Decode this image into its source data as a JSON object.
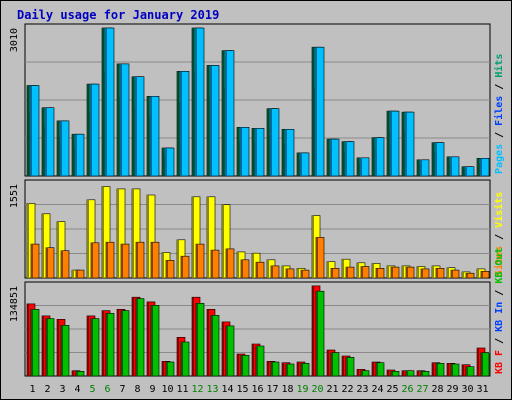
{
  "page": {
    "title": "Daily usage for January 2019"
  },
  "colors": {
    "frame_bg": "#c0c0c0",
    "plot_bg": "#c0c0c0",
    "grid": "#8a8a8a",
    "pages": "#00c0ff",
    "pages_dark": "#006aa0",
    "files": "#0040ff",
    "files_dark": "#002090",
    "hits": "#00a070",
    "hits_dark": "#004a30",
    "visits": "#ffff00",
    "visits_dark": "#8a8a00",
    "sites": "#ff8000",
    "sites_dark": "#8a4000",
    "kbf": "#ff0000",
    "kbf_dark": "#800000",
    "kbin": "#0040ff",
    "kbout": "#00c000",
    "kbout_dark": "#006000",
    "weekday_label": "#000000",
    "weekend_label": "#008000"
  },
  "chart_data": [
    {
      "type": "bar",
      "panel": "hits-files-pages",
      "ymax_label": "3010",
      "ymax": 3010,
      "right_label": [
        {
          "text": "Pages",
          "color": "#00c0ff"
        },
        {
          "text": " / ",
          "color": "#000000"
        },
        {
          "text": "Files",
          "color": "#0040ff"
        },
        {
          "text": " / ",
          "color": "#000000"
        },
        {
          "text": "Hits",
          "color": "#00a070"
        }
      ],
      "x_label_weekend_days": [
        5,
        6,
        12,
        13,
        19,
        20,
        26,
        27
      ],
      "categories": [
        "1",
        "2",
        "3",
        "4",
        "5",
        "6",
        "7",
        "8",
        "9",
        "10",
        "11",
        "12",
        "13",
        "14",
        "15",
        "16",
        "17",
        "18",
        "19",
        "20",
        "21",
        "22",
        "23",
        "24",
        "25",
        "26",
        "27",
        "28",
        "29",
        "30",
        "31"
      ],
      "series": [
        {
          "name": "Hits",
          "values": [
            1840,
            1390,
            1120,
            850,
            1870,
            3010,
            2280,
            2020,
            1620,
            570,
            2130,
            3010,
            2250,
            2550,
            990,
            970,
            1370,
            950,
            470,
            2620,
            750,
            700,
            370,
            780,
            1320,
            1300,
            330,
            680,
            390,
            190,
            360
          ]
        },
        {
          "name": "Files",
          "values": [
            1300,
            1000,
            800,
            600,
            1300,
            2100,
            1600,
            1400,
            1200,
            400,
            1500,
            2100,
            1600,
            1800,
            700,
            680,
            950,
            660,
            330,
            1800,
            520,
            490,
            260,
            550,
            930,
            910,
            230,
            470,
            270,
            130,
            250
          ]
        },
        {
          "name": "Pages",
          "values": [
            1840,
            1390,
            1120,
            850,
            1870,
            3010,
            2280,
            2020,
            1620,
            570,
            2130,
            3010,
            2250,
            2550,
            990,
            970,
            1370,
            950,
            470,
            2620,
            750,
            700,
            370,
            780,
            1320,
            1300,
            330,
            680,
            390,
            190,
            360
          ]
        }
      ]
    },
    {
      "type": "bar",
      "panel": "visits-sites",
      "ymax_label": "1551",
      "ymax": 1551,
      "right_label": [
        {
          "text": "Sites",
          "color": "#ff8000"
        },
        {
          "text": " / ",
          "color": "#000000"
        },
        {
          "text": "Visits",
          "color": "#ffff00"
        }
      ],
      "series": [
        {
          "name": "Visits",
          "values": [
            1230,
            1060,
            930,
            130,
            1290,
            1510,
            1470,
            1470,
            1370,
            420,
            630,
            1340,
            1340,
            1210,
            430,
            410,
            300,
            200,
            160,
            1030,
            270,
            310,
            250,
            240,
            200,
            200,
            190,
            200,
            170,
            100,
            150
          ]
        },
        {
          "name": "Sites",
          "values": [
            560,
            500,
            450,
            130,
            580,
            590,
            560,
            590,
            590,
            290,
            360,
            560,
            460,
            480,
            300,
            260,
            200,
            150,
            130,
            670,
            160,
            180,
            190,
            160,
            180,
            180,
            150,
            160,
            130,
            80,
            110
          ]
        }
      ]
    },
    {
      "type": "bar",
      "panel": "kbytes",
      "ymax_label": "134851",
      "ymax": 134851,
      "right_label": [
        {
          "text": "KB F",
          "color": "#ff0000"
        },
        {
          "text": " / ",
          "color": "#000000"
        },
        {
          "text": "KB In",
          "color": "#0040ff"
        },
        {
          "text": " / ",
          "color": "#000000"
        },
        {
          "text": "KB Out",
          "color": "#00c000"
        }
      ],
      "series": [
        {
          "name": "KB F",
          "values": [
            108000,
            90000,
            85000,
            8000,
            90000,
            98000,
            100000,
            118000,
            111000,
            22000,
            58000,
            118000,
            100000,
            81000,
            33000,
            48000,
            22000,
            20000,
            21000,
            135000,
            39000,
            30000,
            10000,
            21000,
            9000,
            8000,
            8000,
            20000,
            19000,
            17000,
            42000
          ]
        },
        {
          "name": "KB Out",
          "values": [
            100000,
            86000,
            76000,
            7000,
            86000,
            94000,
            98000,
            116000,
            106000,
            21000,
            51000,
            109000,
            91000,
            75000,
            31000,
            45000,
            21000,
            18000,
            19000,
            127000,
            35000,
            28000,
            8000,
            20000,
            7000,
            8000,
            7000,
            19000,
            18000,
            14000,
            35000
          ]
        }
      ]
    }
  ]
}
